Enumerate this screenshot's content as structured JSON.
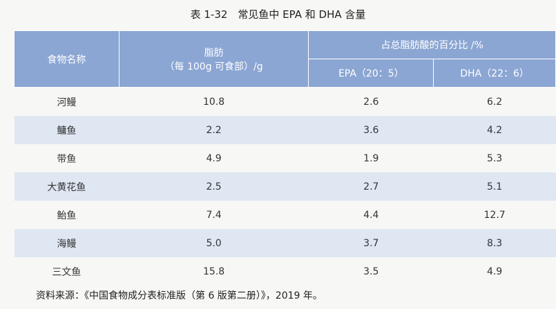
{
  "title": "表 1-32　常见鱼中 EPA 和 DHA 含量",
  "table": {
    "header": {
      "name": "食物名称",
      "fat_line1": "脂肪",
      "fat_line2": "（每 100g 可食部）/g",
      "percent": "占总脂肪酸的百分比 /%",
      "epa": "EPA（20：5）",
      "dha": "DHA（22：6）"
    },
    "rows": [
      [
        "河鳗",
        "10.8",
        "2.6",
        "6.2"
      ],
      [
        "鳙鱼",
        "2.2",
        "3.6",
        "4.2"
      ],
      [
        "带鱼",
        "4.9",
        "1.9",
        "5.3"
      ],
      [
        "大黄花鱼",
        "2.5",
        "2.7",
        "5.1"
      ],
      [
        "鲐鱼",
        "7.4",
        "4.4",
        "12.7"
      ],
      [
        "海鳗",
        "5.0",
        "3.7",
        "8.3"
      ],
      [
        "三文鱼",
        "15.8",
        "3.5",
        "4.9"
      ]
    ]
  },
  "source": "资料来源：《中国食物成分表标准版（第 6 版第二册）》，2019 年。"
}
